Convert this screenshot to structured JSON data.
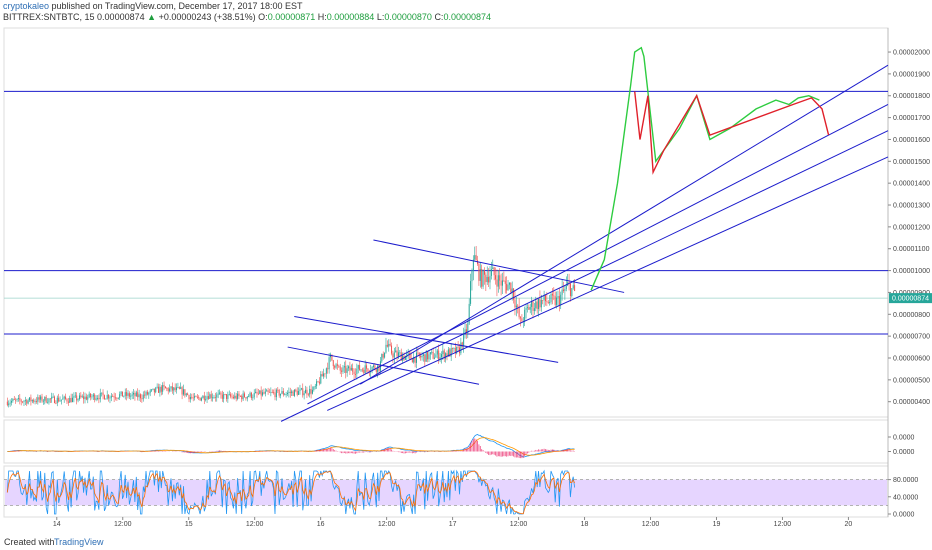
{
  "header": {
    "author": "cryptokaleo",
    "published_text": "published on TradingView.com, December 17, 2017 18:00 EST",
    "symbol": "BITTREX:SNTBTC, 15",
    "last_price": "0.00000874",
    "change_text": "+0.00000243 (+38.51%)",
    "open_label": "O:",
    "open": "0.00000871",
    "high_label": "H:",
    "high": "0.00000884",
    "low_label": "L:",
    "low": "0.00000870",
    "close_label": "C:",
    "close": "0.00000874"
  },
  "footer": {
    "created_with": "Created with",
    "brand": "TradingView"
  },
  "colors": {
    "up": "#26a69a",
    "down": "#ef5350",
    "channel": "#1c1ccc",
    "projection_up": "#2ecc40",
    "projection_down": "#e0212b",
    "macd": "#2196f3",
    "signal": "#ff9800",
    "histogram": "#e91e63",
    "stoch_k": "#2196f3",
    "stoch_d": "#ff6d00",
    "stoch_band": "#d1b3ff"
  },
  "chart_data": {
    "type": "candlestick",
    "timeframe": "15",
    "price_axis": {
      "ylim": [
        3.3e-06,
        2.11e-05
      ],
      "ticks": [
        "0.00002000",
        "0.00001900",
        "0.00001800",
        "0.00001700",
        "0.00001600",
        "0.00001500",
        "0.00001400",
        "0.00001300",
        "0.00001200",
        "0.00001100",
        "0.00001000",
        "0.00000900",
        "0.00000800",
        "0.00000700",
        "0.00000600",
        "0.00000500",
        "0.00000400"
      ],
      "last_price_badge": "0.00000874"
    },
    "time_axis": {
      "xlim": [
        13.6,
        20.3
      ],
      "ticks": [
        {
          "t": 14,
          "label": "14"
        },
        {
          "t": 14.5,
          "label": "12:00"
        },
        {
          "t": 15,
          "label": "15"
        },
        {
          "t": 15.5,
          "label": "12:00"
        },
        {
          "t": 16,
          "label": "16"
        },
        {
          "t": 16.5,
          "label": "12:00"
        },
        {
          "t": 17,
          "label": "17"
        },
        {
          "t": 17.5,
          "label": "12:00"
        },
        {
          "t": 18,
          "label": "18"
        },
        {
          "t": 18.5,
          "label": "12:00"
        },
        {
          "t": 19,
          "label": "19"
        },
        {
          "t": 19.5,
          "label": "12:00"
        },
        {
          "t": 20,
          "label": "20"
        }
      ]
    },
    "price_path": [
      [
        13.62,
        4.0
      ],
      [
        13.9,
        4.1
      ],
      [
        14.1,
        4.1
      ],
      [
        14.3,
        4.25
      ],
      [
        14.5,
        4.3
      ],
      [
        14.65,
        4.25
      ],
      [
        14.8,
        4.6
      ],
      [
        14.95,
        4.5
      ],
      [
        15.05,
        4.1
      ],
      [
        15.15,
        4.3
      ],
      [
        15.35,
        4.2
      ],
      [
        15.55,
        4.35
      ],
      [
        15.75,
        4.4
      ],
      [
        15.95,
        4.5
      ],
      [
        16.03,
        5.3
      ],
      [
        16.08,
        6.0
      ],
      [
        16.15,
        5.4
      ],
      [
        16.3,
        5.5
      ],
      [
        16.45,
        5.6
      ],
      [
        16.5,
        6.6
      ],
      [
        16.55,
        6.2
      ],
      [
        16.7,
        6.0
      ],
      [
        16.85,
        6.1
      ],
      [
        16.95,
        6.2
      ],
      [
        17.05,
        6.3
      ],
      [
        17.12,
        7.4
      ],
      [
        17.16,
        10.8
      ],
      [
        17.22,
        9.6
      ],
      [
        17.3,
        9.9
      ],
      [
        17.38,
        9.4
      ],
      [
        17.45,
        9.3
      ],
      [
        17.52,
        7.6
      ],
      [
        17.58,
        8.3
      ],
      [
        17.68,
        8.6
      ],
      [
        17.8,
        8.6
      ],
      [
        17.88,
        9.3
      ],
      [
        17.93,
        9.0
      ]
    ],
    "candles": {
      "count": 410,
      "shown_by": "price_path",
      "last_ohlc": {
        "open": 8.71e-06,
        "high": 8.84e-06,
        "low": 8.7e-06,
        "close": 8.74e-06
      }
    },
    "horizontal_levels": [
      1.82e-05,
      1e-05,
      7.1e-06
    ],
    "channel_lines": [
      [
        [
          16.3,
          4.8
        ],
        [
          20.3,
          19.4
        ]
      ],
      [
        [
          15.9,
          3.9
        ],
        [
          20.3,
          17.6
        ]
      ],
      [
        [
          15.7,
          3.1
        ],
        [
          20.3,
          16.4
        ]
      ],
      [
        [
          16.05,
          3.6
        ],
        [
          20.3,
          15.2
        ]
      ],
      [
        [
          16.4,
          11.4
        ],
        [
          18.3,
          9.0
        ]
      ],
      [
        [
          15.8,
          7.9
        ],
        [
          17.8,
          5.8
        ]
      ],
      [
        [
          15.75,
          6.5
        ],
        [
          17.2,
          4.8
        ]
      ]
    ],
    "projection_green": [
      [
        18.05,
        9.1
      ],
      [
        18.15,
        10.5
      ],
      [
        18.25,
        14.0
      ],
      [
        18.35,
        18.5
      ],
      [
        18.38,
        20.0
      ],
      [
        18.43,
        20.2
      ],
      [
        18.45,
        19.8
      ],
      [
        18.54,
        15.0
      ],
      [
        18.72,
        16.5
      ],
      [
        18.85,
        18.0
      ],
      [
        18.95,
        16.0
      ],
      [
        19.1,
        16.5
      ],
      [
        19.3,
        17.4
      ],
      [
        19.45,
        17.8
      ],
      [
        19.55,
        17.6
      ],
      [
        19.62,
        17.9
      ],
      [
        19.7,
        18.0
      ],
      [
        19.78,
        17.8
      ]
    ],
    "projection_red": [
      [
        18.38,
        18.2
      ],
      [
        18.42,
        16.0
      ],
      [
        18.48,
        18.0
      ],
      [
        18.52,
        14.5
      ],
      [
        18.6,
        15.5
      ],
      [
        18.85,
        18.0
      ],
      [
        18.95,
        16.2
      ],
      [
        19.58,
        17.6
      ],
      [
        19.72,
        17.9
      ],
      [
        19.8,
        17.4
      ],
      [
        19.85,
        16.2
      ]
    ],
    "macd": {
      "levels": [
        "0.0000",
        "0.0000"
      ],
      "series": [
        {
          "values": "rolling"
        }
      ],
      "hist_range": [
        17.1,
        17.6
      ]
    },
    "stochastic": {
      "ticks": [
        "80.0000",
        "40.0000",
        "0.0000"
      ],
      "band": [
        20,
        80
      ]
    }
  }
}
